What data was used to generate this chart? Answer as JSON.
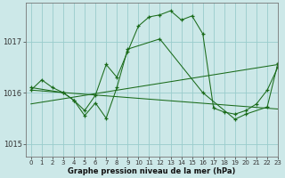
{
  "bg_color": "#cce8e8",
  "grid_color": "#99cccc",
  "line_color": "#1a6b1a",
  "xlabel": "Graphe pression niveau de la mer (hPa)",
  "ylim": [
    1014.75,
    1017.75
  ],
  "xlim": [
    -0.5,
    23
  ],
  "yticks": [
    1015,
    1016,
    1017
  ],
  "xticks": [
    0,
    1,
    2,
    3,
    4,
    5,
    6,
    7,
    8,
    9,
    10,
    11,
    12,
    13,
    14,
    15,
    16,
    17,
    18,
    19,
    20,
    21,
    22,
    23
  ],
  "series": [
    {
      "x": [
        0,
        1,
        2,
        3,
        4,
        5,
        6,
        7,
        8,
        9,
        10,
        11,
        12,
        13,
        14,
        15,
        16,
        17,
        18,
        19,
        20,
        21,
        22,
        23
      ],
      "y": [
        1016.05,
        1016.25,
        1016.1,
        1016.0,
        1015.85,
        1015.65,
        1015.95,
        1016.55,
        1016.3,
        1016.8,
        1017.3,
        1017.48,
        1017.52,
        1017.6,
        1017.42,
        1017.5,
        1017.15,
        1015.7,
        1015.62,
        1015.58,
        1015.65,
        1015.78,
        1016.05,
        1016.5
      ],
      "marker": true
    },
    {
      "x": [
        0,
        3,
        4,
        5,
        6,
        7,
        8,
        9,
        12,
        16,
        19,
        20,
        22,
        23
      ],
      "y": [
        1016.1,
        1016.0,
        1015.85,
        1015.55,
        1015.8,
        1015.5,
        1016.1,
        1016.85,
        1017.05,
        1016.0,
        1015.48,
        1015.58,
        1015.72,
        1016.58
      ],
      "marker": true
    },
    {
      "x": [
        0,
        23
      ],
      "y": [
        1015.78,
        1016.55
      ],
      "marker": false
    },
    {
      "x": [
        0,
        23
      ],
      "y": [
        1016.05,
        1015.68
      ],
      "marker": false
    }
  ]
}
